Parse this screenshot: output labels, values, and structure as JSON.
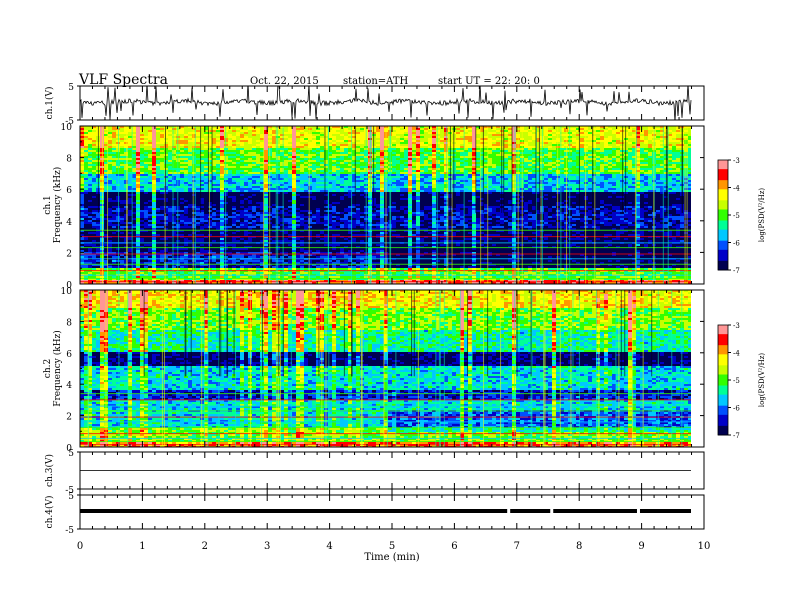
{
  "header": {
    "title": "VLF Spectra",
    "date": "Oct. 22, 2015",
    "station": "station=ATH",
    "start": "start  UT =   22: 20: 0"
  },
  "chart_data": [
    {
      "type": "line",
      "panel": "ch1-waveform",
      "ylabel": "ch.1(V)",
      "ylim": [
        -5,
        5
      ],
      "yticks": [
        "5",
        "-5"
      ],
      "note": "noisy waveform around ~0 V with frequent spikes"
    },
    {
      "type": "heatmap",
      "panel": "ch1-spectrogram",
      "ylabel_top": "ch.1",
      "ylabel": "Frequency (kHz)",
      "ylim": [
        0,
        10
      ],
      "yticks": [
        "0",
        "2",
        "4",
        "6",
        "8",
        "10"
      ],
      "colorbar": {
        "label": "log(PSD(V²/Hz)",
        "range": [
          -7,
          -3
        ],
        "ticks": [
          "-3",
          "-4",
          "-5",
          "-6",
          "-7"
        ]
      },
      "bands": [
        {
          "from": 0,
          "to": 0.3,
          "level": -3.6
        },
        {
          "from": 0.3,
          "to": 1.0,
          "level": -5.0
        },
        {
          "from": 1.0,
          "to": 2.0,
          "level": -6.4
        },
        {
          "from": 2.0,
          "to": 3.5,
          "level": -6.8
        },
        {
          "from": 3.5,
          "to": 5.0,
          "level": -6.5
        },
        {
          "from": 5.0,
          "to": 5.8,
          "level": -6.9
        },
        {
          "from": 5.8,
          "to": 7.0,
          "level": -5.7
        },
        {
          "from": 7.0,
          "to": 8.6,
          "level": -5.0
        },
        {
          "from": 8.6,
          "to": 10.0,
          "level": -4.4
        }
      ]
    },
    {
      "type": "heatmap",
      "panel": "ch2-spectrogram",
      "ylabel_top": "ch.2",
      "ylabel": "Frequency (kHz)",
      "ylim": [
        0,
        10
      ],
      "yticks": [
        "0",
        "2",
        "4",
        "6",
        "8",
        "10"
      ],
      "colorbar": {
        "label": "log(PSD(V²/Hz)",
        "range": [
          -7,
          -3
        ],
        "ticks": [
          "-3",
          "-4",
          "-5",
          "-6",
          "-7"
        ]
      },
      "bands": [
        {
          "from": 0,
          "to": 0.3,
          "level": -3.8
        },
        {
          "from": 0.3,
          "to": 1.2,
          "level": -4.9
        },
        {
          "from": 1.2,
          "to": 3.0,
          "level": -5.6
        },
        {
          "from": 3.0,
          "to": 3.6,
          "level": -6.4
        },
        {
          "from": 3.6,
          "to": 5.2,
          "level": -5.6
        },
        {
          "from": 5.2,
          "to": 6.0,
          "level": -6.8
        },
        {
          "from": 6.0,
          "to": 7.5,
          "level": -5.4
        },
        {
          "from": 7.5,
          "to": 8.8,
          "level": -4.9
        },
        {
          "from": 8.8,
          "to": 10.0,
          "level": -4.3
        }
      ]
    },
    {
      "type": "line",
      "panel": "ch3-waveform",
      "ylabel": "ch.3(V)",
      "ylim": [
        -5,
        5
      ],
      "yticks": [
        "5",
        "-5"
      ],
      "level": 0
    },
    {
      "type": "line",
      "panel": "ch4-waveform",
      "ylabel": "ch.4(V)",
      "ylim": [
        -5,
        5
      ],
      "yticks": [
        "5",
        "-5"
      ],
      "level": 0,
      "gaps": [
        6.87,
        7.56,
        8.95
      ]
    }
  ],
  "xaxis": {
    "label": "Time  (min)",
    "range": [
      0,
      10
    ],
    "ticks": [
      "0",
      "1",
      "2",
      "3",
      "4",
      "5",
      "6",
      "7",
      "8",
      "9",
      "10"
    ]
  },
  "colors": {
    "colormap": [
      "#000050",
      "#0000c8",
      "#0050ff",
      "#00c8ff",
      "#00ff96",
      "#32ff00",
      "#c8ff00",
      "#ffff00",
      "#ff9600",
      "#ff0000",
      "#ff9696"
    ]
  }
}
